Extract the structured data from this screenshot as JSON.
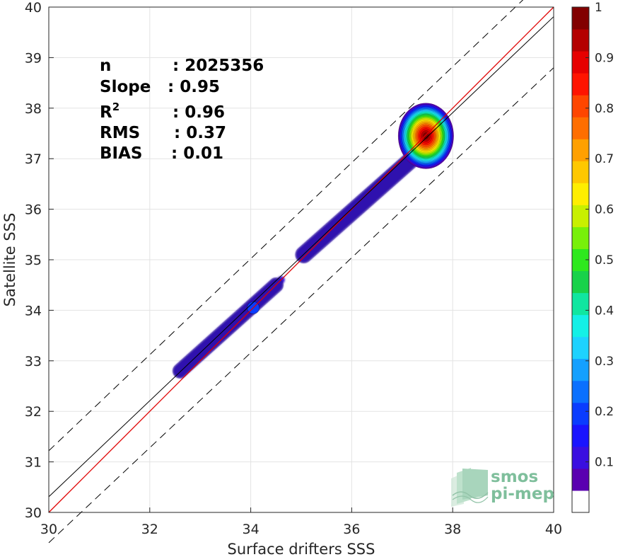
{
  "chart_data": {
    "type": "heatmap",
    "title": "",
    "xlabel": "Surface drifters SSS",
    "ylabel": "Satellite SSS",
    "xlim": [
      30,
      40
    ],
    "ylim": [
      30,
      40
    ],
    "xticks": [
      30,
      32,
      34,
      36,
      38,
      40
    ],
    "yticks": [
      30,
      31,
      32,
      33,
      34,
      35,
      36,
      37,
      38,
      39,
      40
    ],
    "grid": true,
    "density_blobs": [
      {
        "x": 37.47,
        "y": 37.45,
        "level": 1.0
      },
      {
        "x": 34.05,
        "y": 34.05,
        "level": 0.2
      },
      {
        "x": 36.2,
        "y": 36.0,
        "level": 0.1
      },
      {
        "x": 33.4,
        "y": 33.5,
        "level": 0.1
      }
    ],
    "lines": [
      {
        "name": "one-to-one",
        "color": "#e00000",
        "points": [
          [
            30,
            30
          ],
          [
            40,
            40
          ]
        ]
      },
      {
        "name": "linear-fit",
        "color": "#000000",
        "points": [
          [
            30,
            30.31
          ],
          [
            40,
            39.81
          ]
        ]
      },
      {
        "name": "upper-bound",
        "color": "#000000",
        "dashed": true,
        "points": [
          [
            30,
            31.22
          ],
          [
            40,
            40.72
          ]
        ]
      },
      {
        "name": "lower-bound",
        "color": "#000000",
        "dashed": true,
        "points": [
          [
            30,
            29.4
          ],
          [
            40,
            38.8
          ]
        ]
      }
    ],
    "colorbar": {
      "min": 0,
      "max": 1,
      "ticks": [
        0.1,
        0.2,
        0.3,
        0.4,
        0.5,
        0.6,
        0.7,
        0.8,
        0.9,
        1
      ],
      "colors": [
        "#ffffff",
        "#5a00b0",
        "#3a0fe0",
        "#1a14ff",
        "#0a3cff",
        "#0a70ff",
        "#14a0ff",
        "#1ed2ff",
        "#14f0e6",
        "#10e6a0",
        "#18d24a",
        "#2ee81e",
        "#78f00a",
        "#c8f000",
        "#ffee00",
        "#ffc800",
        "#ffa000",
        "#ff6e00",
        "#ff4600",
        "#ff1400",
        "#e60000",
        "#b40000",
        "#820000"
      ]
    },
    "stats": [
      {
        "label": "n",
        "value": ": 2025356"
      },
      {
        "label": "Slope",
        "value": ": 0.95"
      },
      {
        "label": "R",
        "sup": "2",
        "value": ": 0.96"
      },
      {
        "label": "RMS",
        "value": ": 0.37"
      },
      {
        "label": "BIAS",
        "value": ": 0.01"
      }
    ]
  },
  "logo": {
    "line1": "smos",
    "line2": "pi-mep",
    "color": "#7fbf9c"
  }
}
